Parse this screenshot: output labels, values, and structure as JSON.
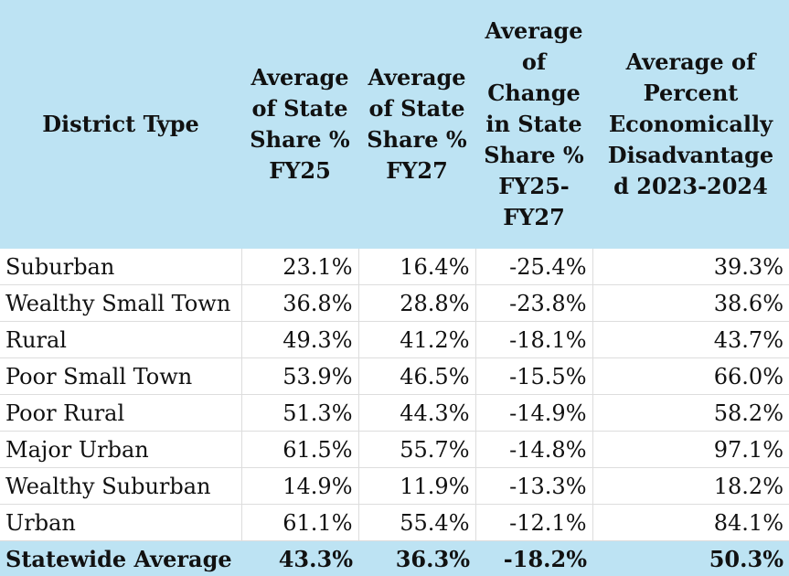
{
  "chart_data": {
    "type": "table",
    "columns": [
      "District Type",
      "Average of State Share % FY25",
      "Average of State Share % FY27",
      "Average of Change in State Share % FY25-FY27",
      "Average of Percent Economically Disadvantaged 2023-2024"
    ],
    "header_lines": [
      [
        "District Type"
      ],
      [
        "Average",
        "of State",
        "Share %",
        "FY25"
      ],
      [
        "Average",
        "of State",
        "Share %",
        "FY27"
      ],
      [
        "Average",
        "of",
        "Change",
        "in State",
        "Share %",
        "FY25-",
        "FY27"
      ],
      [
        "Average of",
        "Percent",
        "Economically",
        "Disadvantage",
        "d 2023-2024"
      ]
    ],
    "rows": [
      [
        "Suburban",
        "23.1%",
        "16.4%",
        "-25.4%",
        "39.3%"
      ],
      [
        "Wealthy Small Town",
        "36.8%",
        "28.8%",
        "-23.8%",
        "38.6%"
      ],
      [
        "Rural",
        "49.3%",
        "41.2%",
        "-18.1%",
        "43.7%"
      ],
      [
        "Poor Small Town",
        "53.9%",
        "46.5%",
        "-15.5%",
        "66.0%"
      ],
      [
        "Poor Rural",
        "51.3%",
        "44.3%",
        "-14.9%",
        "58.2%"
      ],
      [
        "Major Urban",
        "61.5%",
        "55.7%",
        "-14.8%",
        "97.1%"
      ],
      [
        "Wealthy Suburban",
        "14.9%",
        "11.9%",
        "-13.3%",
        "18.2%"
      ],
      [
        "Urban",
        "61.1%",
        "55.4%",
        "-12.1%",
        "84.1%"
      ]
    ],
    "total_row": [
      "Statewide Average",
      "43.3%",
      "36.3%",
      "-18.2%",
      "50.3%"
    ]
  },
  "colors": {
    "header_background": "#bde3f3",
    "total_background": "#bde3f3",
    "grid_line": "#dddddd",
    "text": "#111111"
  }
}
